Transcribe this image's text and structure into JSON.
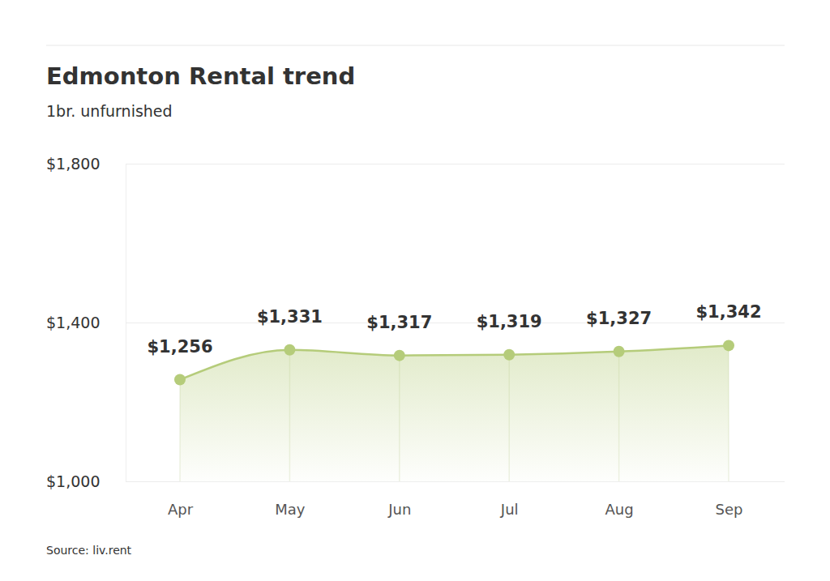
{
  "chart_data": {
    "type": "line",
    "title": "Edmonton Rental trend",
    "subtitle": "1br. unfurnished",
    "source": "Source: liv.rent",
    "categories": [
      "Apr",
      "May",
      "Jun",
      "Jul",
      "Aug",
      "Sep"
    ],
    "values": [
      1256,
      1331,
      1317,
      1319,
      1327,
      1342
    ],
    "value_labels": [
      "$1,256",
      "$1,331",
      "$1,317",
      "$1,319",
      "$1,327",
      "$1,342"
    ],
    "color": "#b5cc7a",
    "marker": "circle",
    "ylim": [
      1000,
      1800
    ],
    "yticks": [
      {
        "value": 1000,
        "label": "$1,000"
      },
      {
        "value": 1400,
        "label": "$1,400"
      },
      {
        "value": 1800,
        "label": "$1,800"
      }
    ],
    "grid": true,
    "data_labels": true
  }
}
